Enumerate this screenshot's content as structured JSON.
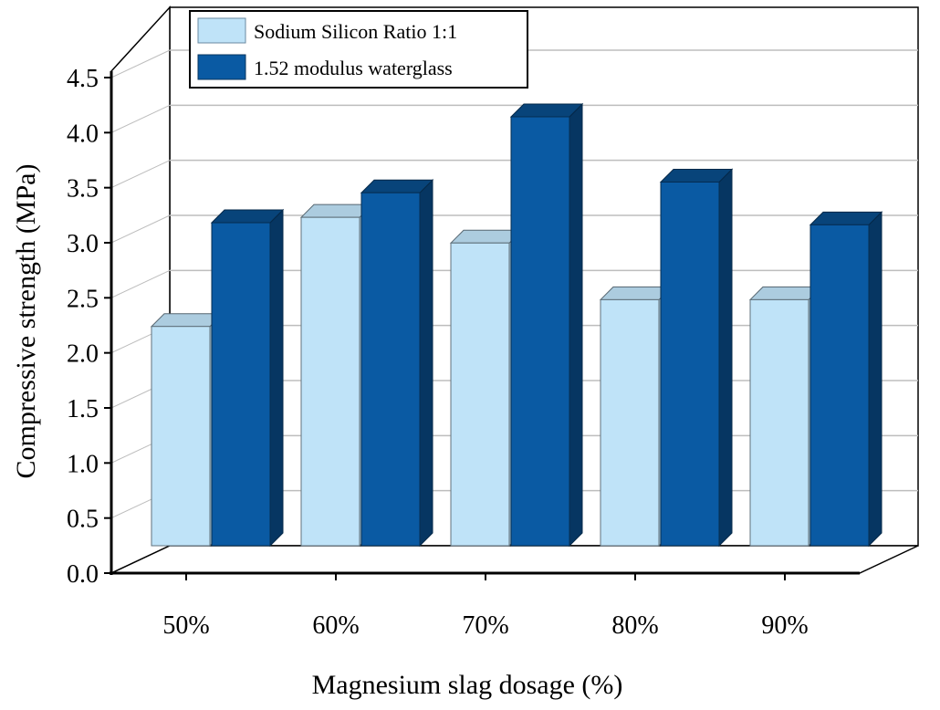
{
  "chart_data": {
    "type": "bar",
    "style": "3d-clustered",
    "title": "",
    "xlabel": "Magnesium slag dosage (%)",
    "ylabel": "Compressive strength (MPa)",
    "ylim": [
      0,
      4.5
    ],
    "yticks": [
      "0.0",
      "0.5",
      "1.0",
      "1.5",
      "2.0",
      "2.5",
      "3.0",
      "3.5",
      "4.0",
      "4.5"
    ],
    "categories": [
      "50%",
      "60%",
      "70%",
      "80%",
      "90%"
    ],
    "series": [
      {
        "name": "Sodium Silicon Ratio 1:1",
        "color": "#bfe3f8",
        "values": [
          2.05,
          3.07,
          2.83,
          2.3,
          2.3
        ]
      },
      {
        "name": "1.52 modulus waterglass",
        "color": "#0a5aa3",
        "values": [
          3.02,
          3.3,
          4.01,
          3.4,
          3.0
        ]
      }
    ],
    "legend_position": "top-left",
    "grid": true
  }
}
